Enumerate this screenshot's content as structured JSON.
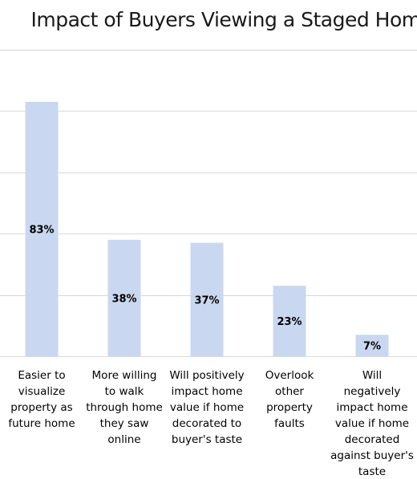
{
  "chart_data": {
    "type": "bar",
    "title": "Impact of Buyers Viewing a Staged Home",
    "xlabel": "",
    "ylabel": "",
    "ylim": [
      0,
      100
    ],
    "grid": true,
    "legend": "none",
    "colors": {
      "bar": "#c9d8f0",
      "grid": "#d9d9d9",
      "label": "#000000"
    },
    "categories": [
      "Easier to visualize property as future home",
      "More willing to walk through home they saw online",
      "Will positively impact home value if home decorated to buyer's taste",
      "Overlook other property faults",
      "Will negatively impact home value if home decorated against buyer's taste"
    ],
    "category_lines": [
      [
        "Easier to",
        "visualize",
        "property as",
        "future home"
      ],
      [
        "More willing",
        "to walk",
        "through home",
        "they saw",
        "online"
      ],
      [
        "Will positively",
        "impact home",
        "value if home",
        "decorated to",
        "buyer's taste"
      ],
      [
        "Overlook",
        "other",
        "property",
        "faults"
      ],
      [
        "Will",
        "negatively",
        "impact home",
        "value if home",
        "decorated",
        "against buyer's",
        "taste"
      ]
    ],
    "values": [
      83,
      38,
      37,
      23,
      7
    ],
    "value_labels": [
      "83%",
      "38%",
      "37%",
      "23%",
      "7%"
    ]
  }
}
